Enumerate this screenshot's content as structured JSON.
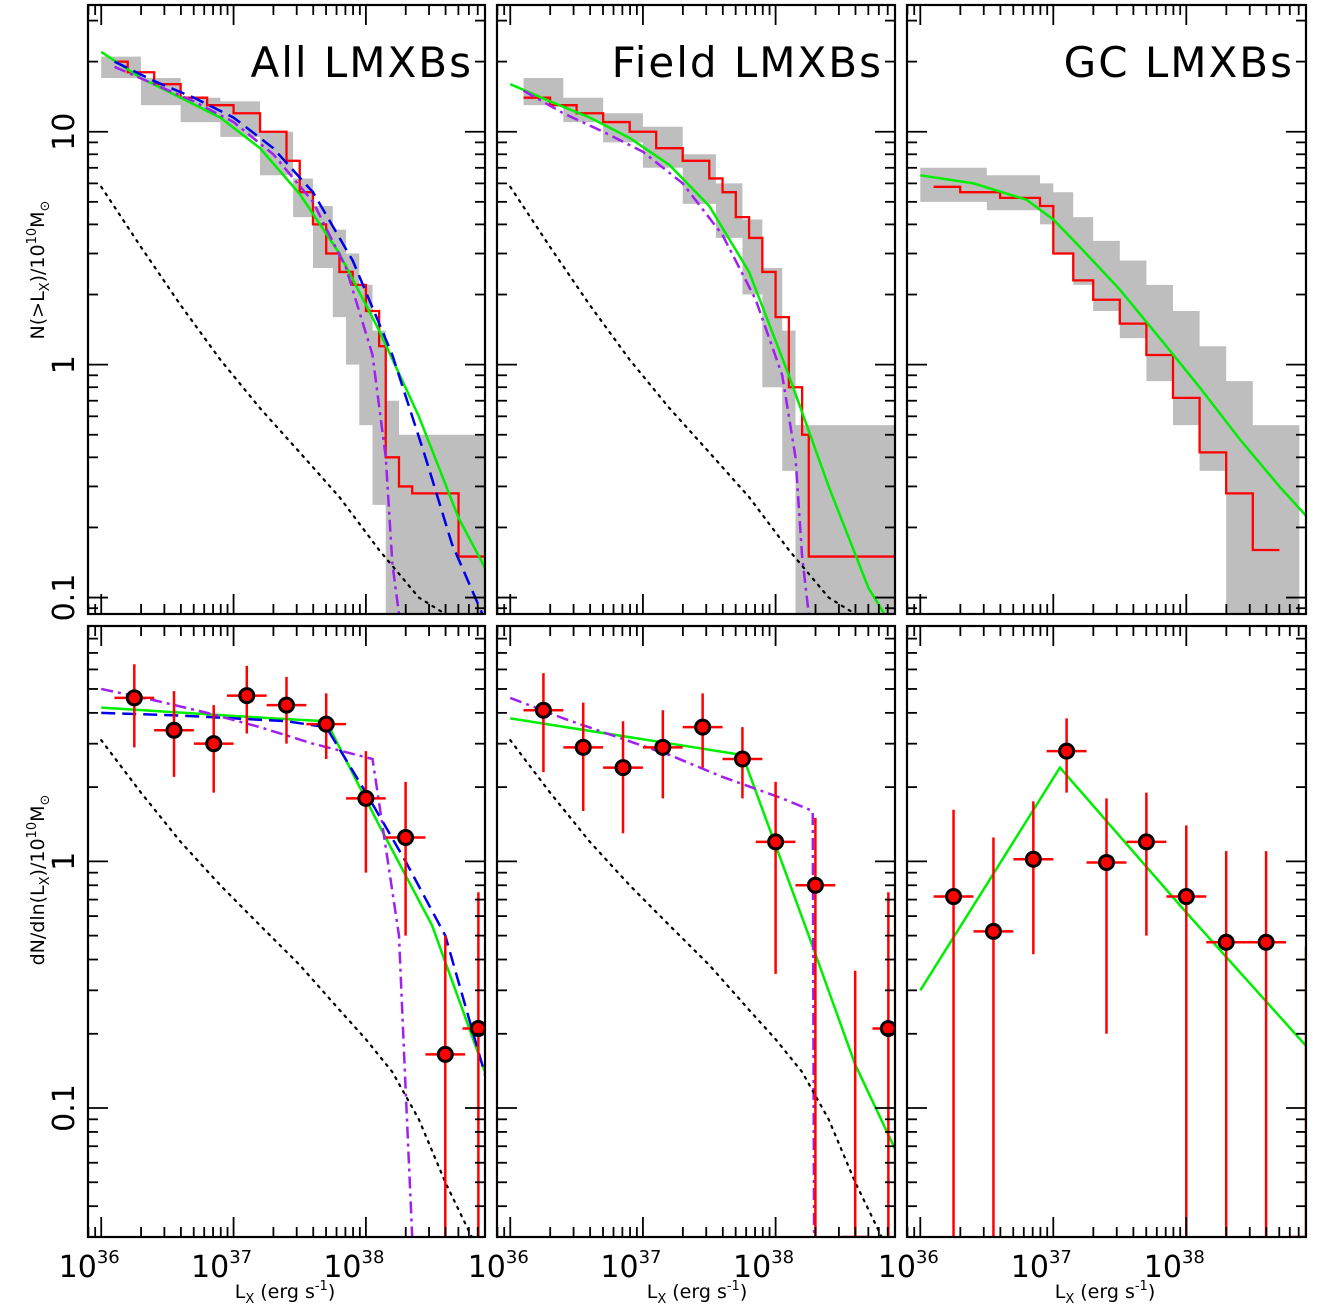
{
  "figure": {
    "ylabel_top": "N(>L",
    "ylabel_top_sub": "X",
    "ylabel_top_rest": ")/10",
    "ylabel_top_exp": "10",
    "ylabel_top_unit": "M",
    "ylabel_top_sun": "⊙",
    "ylabel_bottom": "dN/dln(L",
    "ylabel_bottom_sub": "X",
    "ylabel_bottom_rest": ")/10",
    "ylabel_bottom_exp": "10",
    "ylabel_bottom_unit": "M",
    "ylabel_bottom_sun": "⊙",
    "xlabel_main": "L",
    "xlabel_sub": "X",
    "xlabel_rest": " (erg s",
    "xlabel_exp": "-1",
    "xlabel_close": ")",
    "x_ticks": [
      {
        "base": "10",
        "exp": "36",
        "value": 36
      },
      {
        "base": "10",
        "exp": "37",
        "value": 37
      },
      {
        "base": "10",
        "exp": "38",
        "value": 38
      }
    ],
    "y_ticks_top": [
      {
        "label": "10",
        "value": 10
      },
      {
        "label": "1",
        "value": 1
      },
      {
        "label": "0.1",
        "value": 0.1
      }
    ],
    "y_ticks_bottom": [
      {
        "label": "1",
        "value": 1
      },
      {
        "label": "0.1",
        "value": 0.1
      }
    ],
    "colors": {
      "data": "#ff0000",
      "band": "#bebebe",
      "green": "#00ee00",
      "blue": "#0000ee",
      "purple": "#a020f0",
      "black": "#000000"
    }
  },
  "chart_data": [
    {
      "panel": "top-left",
      "type": "line",
      "title": "All LMXBs",
      "xlog": true,
      "ylog": true,
      "xlim": [
        35.9,
        38.9
      ],
      "ylim": [
        0.085,
        35
      ],
      "series": [
        {
          "style": "band",
          "x": [
            36,
            36.3,
            36.6,
            36.9,
            37.2,
            37.45,
            37.6,
            37.75,
            37.85,
            37.95,
            38.05,
            38.15,
            38.25,
            38.5,
            38.75
          ],
          "ylo": [
            17,
            13,
            11,
            9.5,
            6.5,
            4.3,
            2.6,
            1.6,
            1.0,
            0.55,
            0.25,
            0.085,
            0.085,
            0.085,
            0.085
          ],
          "yhi": [
            21,
            17,
            14,
            13.5,
            10,
            6.3,
            4.8,
            3.8,
            3.0,
            2.2,
            1.4,
            0.7,
            0.5,
            0.5,
            0.5
          ]
        },
        {
          "style": "step",
          "x": [
            36.1,
            36.2,
            36.4,
            36.6,
            36.8,
            37.0,
            37.2,
            37.4,
            37.5,
            37.6,
            37.7,
            37.8,
            37.9,
            38.0,
            38.1,
            38.15,
            38.25,
            38.35,
            38.55,
            38.7,
            38.9
          ],
          "y": [
            20,
            18,
            16,
            14,
            13,
            12,
            10,
            7.5,
            5.5,
            4,
            3,
            2.5,
            2.2,
            1.7,
            1.2,
            0.4,
            0.3,
            0.28,
            0.28,
            0.15,
            0.15
          ]
        },
        {
          "style": "solid-green",
          "x": [
            36,
            36.3,
            36.6,
            36.9,
            37.2,
            37.5,
            37.8,
            38.1,
            38.4,
            38.7,
            38.98
          ],
          "y": [
            22,
            17,
            14,
            11.5,
            8.5,
            5.4,
            3,
            1.4,
            0.6,
            0.22,
            0.11
          ]
        },
        {
          "style": "dashed-blue",
          "x": [
            36.1,
            36.4,
            36.7,
            37,
            37.3,
            37.6,
            37.9,
            38.2,
            38.45,
            38.65,
            38.88
          ],
          "y": [
            20,
            16.5,
            14,
            11.5,
            8.5,
            5.5,
            2.8,
            1.1,
            0.4,
            0.17,
            0.08
          ]
        },
        {
          "style": "dashdot-purple",
          "x": [
            36.1,
            36.4,
            36.7,
            37,
            37.3,
            37.6,
            37.85,
            38.05,
            38.15,
            38.2,
            38.25
          ],
          "y": [
            19,
            16,
            13.5,
            11,
            8,
            5,
            2.6,
            1.1,
            0.4,
            0.14,
            0.08
          ]
        },
        {
          "style": "dotted-black",
          "x": [
            36,
            36.3,
            36.6,
            36.9,
            37.2,
            37.5,
            37.8,
            38.1,
            38.4,
            38.6
          ],
          "y": [
            5.8,
            3.2,
            1.8,
            1.05,
            0.65,
            0.42,
            0.27,
            0.16,
            0.1,
            0.08
          ]
        }
      ]
    },
    {
      "panel": "top-middle",
      "type": "line",
      "title": "Field LMXBs",
      "xlog": true,
      "ylog": true,
      "xlim": [
        35.9,
        38.9
      ],
      "ylim": [
        0.085,
        35
      ],
      "series": [
        {
          "style": "band",
          "x": [
            36.1,
            36.4,
            36.7,
            37,
            37.3,
            37.55,
            37.75,
            37.9,
            38.05,
            38.15,
            38.3,
            38.6,
            38.9
          ],
          "ylo": [
            13,
            11,
            9,
            7,
            4.9,
            3.5,
            2,
            0.8,
            0.35,
            0.085,
            0.085,
            0.085,
            0.085
          ],
          "yhi": [
            17,
            14,
            12,
            10.5,
            8,
            6,
            4.2,
            2.6,
            1.4,
            0.55,
            0.55,
            0.55,
            0.55
          ]
        },
        {
          "style": "step",
          "x": [
            36.1,
            36.3,
            36.5,
            36.7,
            36.9,
            37.1,
            37.3,
            37.5,
            37.6,
            37.7,
            37.8,
            37.9,
            38.0,
            38.1,
            38.2,
            38.25,
            38.6,
            38.9
          ],
          "y": [
            14,
            13,
            12,
            11,
            10,
            8.5,
            7.5,
            6.3,
            5.5,
            4.3,
            3.5,
            2.5,
            1.6,
            0.8,
            0.5,
            0.15,
            0.15,
            0.15
          ]
        },
        {
          "style": "solid-green",
          "x": [
            36,
            36.3,
            36.6,
            36.9,
            37.2,
            37.5,
            37.8,
            38.1,
            38.4,
            38.7,
            38.82
          ],
          "y": [
            16,
            13.5,
            11.5,
            9.4,
            7.2,
            4.8,
            2.5,
            0.9,
            0.3,
            0.11,
            0.085
          ]
        },
        {
          "style": "dashdot-purple",
          "x": [
            36.1,
            36.4,
            36.7,
            37,
            37.3,
            37.6,
            37.85,
            38.05,
            38.15,
            38.2,
            38.25
          ],
          "y": [
            15,
            12,
            10,
            8.2,
            6,
            3.6,
            1.9,
            0.9,
            0.4,
            0.15,
            0.085
          ]
        },
        {
          "style": "dotted-black",
          "x": [
            36,
            36.3,
            36.6,
            36.9,
            37.2,
            37.5,
            37.8,
            38.1,
            38.4,
            38.6
          ],
          "y": [
            5.8,
            3.2,
            1.8,
            1.05,
            0.65,
            0.42,
            0.27,
            0.16,
            0.1,
            0.08
          ]
        }
      ]
    },
    {
      "panel": "top-right",
      "type": "line",
      "title": "GC LMXBs",
      "xlog": true,
      "ylog": true,
      "xlim": [
        35.9,
        38.9
      ],
      "ylim": [
        0.085,
        35
      ],
      "series": [
        {
          "style": "band",
          "x": [
            36,
            36.5,
            36.9,
            37.0,
            37.15,
            37.3,
            37.5,
            37.7,
            37.9,
            38.1,
            38.3,
            38.5,
            38.7
          ],
          "ylo": [
            5,
            4.6,
            4,
            3,
            2.2,
            1.7,
            1.3,
            0.85,
            0.55,
            0.35,
            0.085,
            0.085,
            0.085
          ],
          "yhi": [
            7,
            6.5,
            6,
            5.5,
            4.3,
            3.4,
            2.8,
            2.2,
            1.7,
            1.2,
            0.85,
            0.55,
            0.55
          ]
        },
        {
          "style": "step",
          "x": [
            36.1,
            36.3,
            36.6,
            36.9,
            37.0,
            37.15,
            37.3,
            37.5,
            37.7,
            37.9,
            38.1,
            38.3,
            38.5,
            38.7
          ],
          "y": [
            5.8,
            5.5,
            5.2,
            4.8,
            3,
            2.3,
            1.9,
            1.5,
            1.1,
            0.72,
            0.42,
            0.28,
            0.16,
            0.16
          ]
        },
        {
          "style": "solid-green",
          "x": [
            36,
            36.4,
            36.8,
            37.0,
            37.2,
            37.5,
            37.8,
            38.1,
            38.4,
            38.7,
            38.98
          ],
          "y": [
            6.5,
            6.0,
            5.1,
            4.2,
            3.2,
            2.1,
            1.3,
            0.8,
            0.48,
            0.3,
            0.2
          ]
        }
      ]
    },
    {
      "panel": "bottom-left",
      "type": "scatter",
      "xlog": true,
      "ylog": true,
      "xlim": [
        35.9,
        38.9
      ],
      "ylim": [
        0.03,
        9
      ],
      "points": [
        {
          "x": 36.25,
          "y": 4.6,
          "xerr": 0.15,
          "ylo": 2.9,
          "yhi": 6.3
        },
        {
          "x": 36.55,
          "y": 3.4,
          "xerr": 0.15,
          "ylo": 2.2,
          "yhi": 4.9
        },
        {
          "x": 36.85,
          "y": 3.0,
          "xerr": 0.15,
          "ylo": 1.9,
          "yhi": 4.3
        },
        {
          "x": 37.1,
          "y": 4.7,
          "xerr": 0.15,
          "ylo": 3.3,
          "yhi": 6.2
        },
        {
          "x": 37.4,
          "y": 4.3,
          "xerr": 0.15,
          "ylo": 3.0,
          "yhi": 5.6
        },
        {
          "x": 37.7,
          "y": 3.6,
          "xerr": 0.15,
          "ylo": 2.6,
          "yhi": 4.8
        },
        {
          "x": 38.0,
          "y": 1.8,
          "xerr": 0.15,
          "ylo": 0.9,
          "yhi": 2.8
        },
        {
          "x": 38.3,
          "y": 1.25,
          "xerr": 0.15,
          "ylo": 0.5,
          "yhi": 2.1
        },
        {
          "x": 38.6,
          "y": 0.165,
          "xerr": 0.15,
          "ylo": 0.03,
          "yhi": 0.5
        },
        {
          "x": 38.85,
          "y": 0.21,
          "xerr": 0.12,
          "ylo": 0.03,
          "yhi": 0.75
        }
      ],
      "series": [
        {
          "style": "solid-green",
          "x": [
            36,
            37.3,
            37.7,
            38.1,
            38.5,
            38.9
          ],
          "y": [
            4.2,
            3.8,
            3.7,
            1.4,
            0.55,
            0.14
          ]
        },
        {
          "style": "dashed-blue",
          "x": [
            36,
            36.6,
            37,
            37.4,
            37.7,
            38,
            38.3,
            38.6,
            38.95
          ],
          "y": [
            4.0,
            3.9,
            3.8,
            3.7,
            3.5,
            1.9,
            1.0,
            0.5,
            0.11
          ]
        },
        {
          "style": "dashdot-purple",
          "x": [
            36,
            36.4,
            36.8,
            37.2,
            37.6,
            38.05,
            38.25,
            38.3,
            38.35
          ],
          "y": [
            5.0,
            4.5,
            4.0,
            3.5,
            3.0,
            2.6,
            0.5,
            0.12,
            0.03
          ]
        },
        {
          "style": "dotted-black",
          "x": [
            36,
            36.3,
            36.6,
            36.9,
            37.2,
            37.5,
            37.8,
            38.0,
            38.2,
            38.4,
            38.6,
            38.8
          ],
          "y": [
            3.1,
            1.9,
            1.2,
            0.8,
            0.55,
            0.38,
            0.25,
            0.19,
            0.14,
            0.09,
            0.05,
            0.03
          ]
        }
      ]
    },
    {
      "panel": "bottom-middle",
      "type": "scatter",
      "xlog": true,
      "ylog": true,
      "xlim": [
        35.9,
        38.9
      ],
      "ylim": [
        0.03,
        9
      ],
      "points": [
        {
          "x": 36.25,
          "y": 4.1,
          "xerr": 0.15,
          "ylo": 2.3,
          "yhi": 5.8
        },
        {
          "x": 36.55,
          "y": 2.9,
          "xerr": 0.15,
          "ylo": 1.6,
          "yhi": 4.4
        },
        {
          "x": 36.85,
          "y": 2.4,
          "xerr": 0.15,
          "ylo": 1.3,
          "yhi": 3.7
        },
        {
          "x": 37.15,
          "y": 2.9,
          "xerr": 0.15,
          "ylo": 1.8,
          "yhi": 4.1
        },
        {
          "x": 37.45,
          "y": 3.5,
          "xerr": 0.15,
          "ylo": 2.4,
          "yhi": 4.8
        },
        {
          "x": 37.75,
          "y": 2.6,
          "xerr": 0.15,
          "ylo": 1.8,
          "yhi": 3.5
        },
        {
          "x": 38.0,
          "y": 1.2,
          "xerr": 0.15,
          "ylo": 0.35,
          "yhi": 2.1
        },
        {
          "x": 38.3,
          "y": 0.8,
          "xerr": 0.15,
          "ylo": 0.03,
          "yhi": 1.5
        },
        {
          "x": 38.6,
          "y": 0.03,
          "xerr": 0.1,
          "ylo": 0.03,
          "yhi": 0.36
        },
        {
          "x": 38.85,
          "y": 0.21,
          "xerr": 0.12,
          "ylo": 0.03,
          "yhi": 0.75
        }
      ],
      "series": [
        {
          "style": "solid-green",
          "x": [
            36,
            37.75,
            38.25,
            38.6,
            38.95
          ],
          "y": [
            3.8,
            2.7,
            0.5,
            0.15,
            0.06
          ]
        },
        {
          "style": "dashdot-purple",
          "x": [
            36,
            36.4,
            36.8,
            37.2,
            37.6,
            38.05,
            38.28,
            38.29
          ],
          "y": [
            4.6,
            3.8,
            3.2,
            2.7,
            2.2,
            1.8,
            1.6,
            0.03
          ]
        },
        {
          "style": "dotted-black",
          "x": [
            36,
            36.3,
            36.6,
            36.9,
            37.2,
            37.5,
            37.8,
            38.0,
            38.2,
            38.4,
            38.6,
            38.8
          ],
          "y": [
            3.1,
            1.9,
            1.2,
            0.8,
            0.55,
            0.38,
            0.25,
            0.19,
            0.14,
            0.09,
            0.05,
            0.03
          ]
        }
      ]
    },
    {
      "panel": "bottom-right",
      "type": "scatter",
      "xlog": true,
      "ylog": true,
      "xlim": [
        35.9,
        38.9
      ],
      "ylim": [
        0.03,
        9
      ],
      "points": [
        {
          "x": 36.25,
          "y": 0.72,
          "xerr": 0.15,
          "ylo": 0.03,
          "yhi": 1.62
        },
        {
          "x": 36.55,
          "y": 0.52,
          "xerr": 0.15,
          "ylo": 0.03,
          "yhi": 1.25
        },
        {
          "x": 36.85,
          "y": 1.02,
          "xerr": 0.15,
          "ylo": 0.42,
          "yhi": 1.75
        },
        {
          "x": 37.1,
          "y": 2.8,
          "xerr": 0.15,
          "ylo": 1.9,
          "yhi": 3.8
        },
        {
          "x": 37.4,
          "y": 0.99,
          "xerr": 0.15,
          "ylo": 0.2,
          "yhi": 1.8
        },
        {
          "x": 37.7,
          "y": 1.2,
          "xerr": 0.15,
          "ylo": 0.5,
          "yhi": 1.9
        },
        {
          "x": 38.0,
          "y": 0.72,
          "xerr": 0.15,
          "ylo": 0.03,
          "yhi": 1.4
        },
        {
          "x": 38.3,
          "y": 0.47,
          "xerr": 0.15,
          "ylo": 0.03,
          "yhi": 1.1
        },
        {
          "x": 38.6,
          "y": 0.47,
          "xerr": 0.15,
          "ylo": 0.03,
          "yhi": 1.1
        },
        {
          "x": 38.9,
          "y": 0.03,
          "xerr": 0.12,
          "ylo": 0.03,
          "yhi": 0.45
        }
      ],
      "series": [
        {
          "style": "solid-green",
          "x": [
            36,
            37.05,
            38,
            38.98
          ],
          "y": [
            0.3,
            2.4,
            0.62,
            0.16
          ]
        }
      ]
    }
  ]
}
